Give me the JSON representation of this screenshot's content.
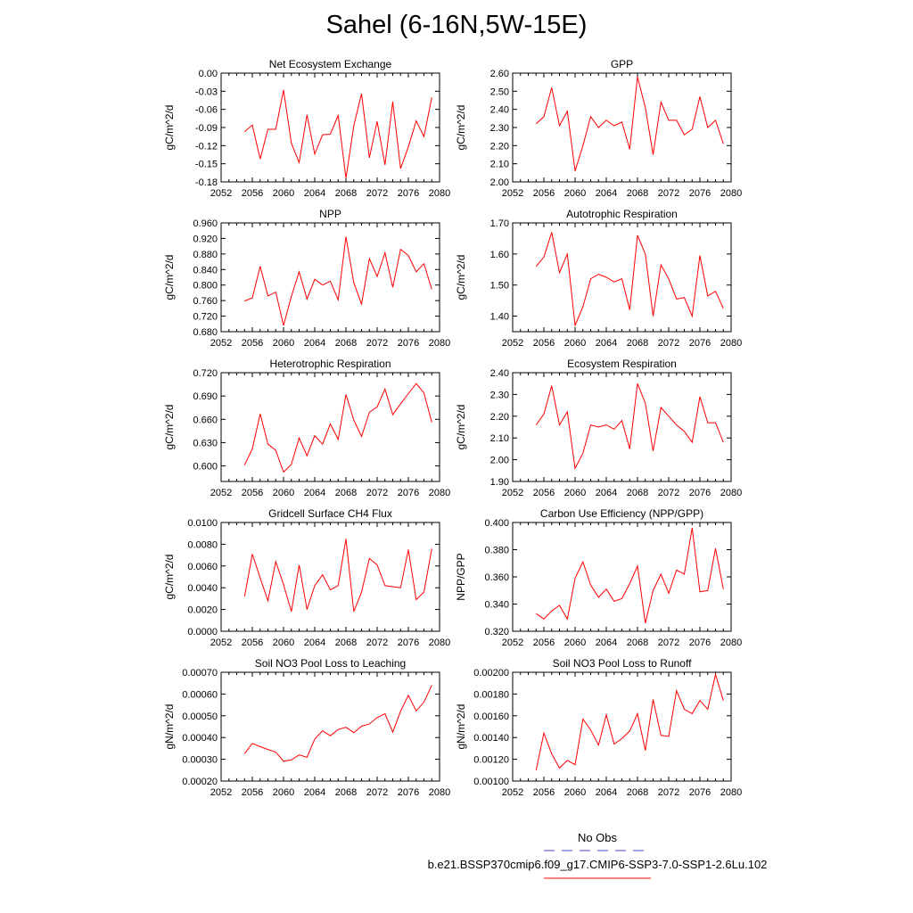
{
  "title": "Sahel (6-16N,5W-15E)",
  "legend": {
    "obs_label": "No Obs",
    "run_label": "b.e21.BSSP370cmip6.f09_g17.CMIP6-SSP3-7.0-SSP1-2.6Lu.102",
    "obs_color": "#4444cc",
    "run_color": "#ff0000"
  },
  "chart_data": [
    {
      "type": "line",
      "title": "Net Ecosystem Exchange",
      "xlabel": "",
      "ylabel": "gC/m^2/d",
      "xlim": [
        2052,
        2080
      ],
      "xticks": [
        2052,
        2056,
        2060,
        2064,
        2068,
        2072,
        2076,
        2080
      ],
      "ylim": [
        -0.18,
        0.0
      ],
      "yticklabels": [
        "-0.18",
        "-0.15",
        "-0.12",
        "-0.09",
        "-0.06",
        "-0.03",
        "0.00"
      ],
      "x": [
        2055,
        2056,
        2057,
        2058,
        2059,
        2060,
        2061,
        2062,
        2063,
        2064,
        2065,
        2066,
        2067,
        2068,
        2069,
        2070,
        2071,
        2072,
        2073,
        2074,
        2075,
        2076,
        2077,
        2078,
        2079
      ],
      "series": [
        {
          "values": [
            -0.097,
            -0.086,
            -0.142,
            -0.093,
            -0.093,
            -0.028,
            -0.116,
            -0.148,
            -0.069,
            -0.134,
            -0.102,
            -0.101,
            -0.07,
            -0.174,
            -0.087,
            -0.034,
            -0.14,
            -0.08,
            -0.152,
            -0.047,
            -0.158,
            -0.122,
            -0.079,
            -0.105,
            -0.04
          ]
        }
      ]
    },
    {
      "type": "line",
      "title": "GPP",
      "xlabel": "",
      "ylabel": "gC/m^2/d",
      "xlim": [
        2052,
        2080
      ],
      "xticks": [
        2052,
        2056,
        2060,
        2064,
        2068,
        2072,
        2076,
        2080
      ],
      "ylim": [
        2.0,
        2.6
      ],
      "yticklabels": [
        "2.00",
        "2.10",
        "2.20",
        "2.30",
        "2.40",
        "2.50",
        "2.60"
      ],
      "x": [
        2055,
        2056,
        2057,
        2058,
        2059,
        2060,
        2061,
        2062,
        2063,
        2064,
        2065,
        2066,
        2067,
        2068,
        2069,
        2070,
        2071,
        2072,
        2073,
        2074,
        2075,
        2076,
        2077,
        2078,
        2079
      ],
      "series": [
        {
          "values": [
            2.32,
            2.36,
            2.52,
            2.31,
            2.39,
            2.06,
            2.2,
            2.36,
            2.3,
            2.34,
            2.31,
            2.33,
            2.18,
            2.58,
            2.41,
            2.15,
            2.44,
            2.34,
            2.34,
            2.26,
            2.29,
            2.47,
            2.3,
            2.34,
            2.21
          ]
        }
      ]
    },
    {
      "type": "line",
      "title": "NPP",
      "xlabel": "",
      "ylabel": "gC/m^2/d",
      "xlim": [
        2052,
        2080
      ],
      "xticks": [
        2052,
        2056,
        2060,
        2064,
        2068,
        2072,
        2076,
        2080
      ],
      "ylim": [
        0.68,
        0.96
      ],
      "yticklabels": [
        "0.680",
        "0.720",
        "0.760",
        "0.800",
        "0.840",
        "0.880",
        "0.920",
        "0.960"
      ],
      "x": [
        2055,
        2056,
        2057,
        2058,
        2059,
        2060,
        2061,
        2062,
        2063,
        2064,
        2065,
        2066,
        2067,
        2068,
        2069,
        2070,
        2071,
        2072,
        2073,
        2074,
        2075,
        2076,
        2077,
        2078,
        2079
      ],
      "series": [
        {
          "values": [
            0.759,
            0.767,
            0.848,
            0.772,
            0.782,
            0.696,
            0.771,
            0.834,
            0.764,
            0.815,
            0.8,
            0.81,
            0.762,
            0.925,
            0.806,
            0.751,
            0.868,
            0.822,
            0.883,
            0.794,
            0.892,
            0.876,
            0.834,
            0.855,
            0.789
          ]
        }
      ]
    },
    {
      "type": "line",
      "title": "Autotrophic Respiration",
      "xlabel": "",
      "ylabel": "gC/m^2/d",
      "xlim": [
        2052,
        2080
      ],
      "xticks": [
        2052,
        2056,
        2060,
        2064,
        2068,
        2072,
        2076,
        2080
      ],
      "ylim": [
        1.35,
        1.7
      ],
      "yticklabels": [
        "1.40",
        "1.50",
        "1.60",
        "1.70"
      ],
      "yticks": [
        1.4,
        1.5,
        1.6,
        1.7
      ],
      "x": [
        2055,
        2056,
        2057,
        2058,
        2059,
        2060,
        2061,
        2062,
        2063,
        2064,
        2065,
        2066,
        2067,
        2068,
        2069,
        2070,
        2071,
        2072,
        2073,
        2074,
        2075,
        2076,
        2077,
        2078,
        2079
      ],
      "series": [
        {
          "values": [
            1.56,
            1.59,
            1.67,
            1.54,
            1.6,
            1.37,
            1.43,
            1.52,
            1.535,
            1.525,
            1.51,
            1.52,
            1.42,
            1.66,
            1.6,
            1.4,
            1.565,
            1.52,
            1.455,
            1.46,
            1.4,
            1.595,
            1.465,
            1.48,
            1.425
          ]
        }
      ]
    },
    {
      "type": "line",
      "title": "Heterotrophic Respiration",
      "xlabel": "",
      "ylabel": "gC/m^2/d",
      "xlim": [
        2052,
        2080
      ],
      "xticks": [
        2052,
        2056,
        2060,
        2064,
        2068,
        2072,
        2076,
        2080
      ],
      "ylim": [
        0.58,
        0.72
      ],
      "yticklabels": [
        "0.600",
        "0.630",
        "0.660",
        "0.690",
        "0.720"
      ],
      "yticks": [
        0.6,
        0.63,
        0.66,
        0.69,
        0.72
      ],
      "x": [
        2055,
        2056,
        2057,
        2058,
        2059,
        2060,
        2061,
        2062,
        2063,
        2064,
        2065,
        2066,
        2067,
        2068,
        2069,
        2070,
        2071,
        2072,
        2073,
        2074,
        2075,
        2076,
        2077,
        2078,
        2079
      ],
      "series": [
        {
          "values": [
            0.601,
            0.622,
            0.667,
            0.628,
            0.62,
            0.592,
            0.602,
            0.636,
            0.613,
            0.639,
            0.628,
            0.654,
            0.634,
            0.692,
            0.659,
            0.638,
            0.669,
            0.676,
            0.699,
            0.666,
            0.68,
            0.693,
            0.706,
            0.694,
            0.656
          ]
        }
      ]
    },
    {
      "type": "line",
      "title": "Ecosystem Respiration",
      "xlabel": "",
      "ylabel": "gC/m^2/d",
      "xlim": [
        2052,
        2080
      ],
      "xticks": [
        2052,
        2056,
        2060,
        2064,
        2068,
        2072,
        2076,
        2080
      ],
      "ylim": [
        1.9,
        2.4
      ],
      "yticklabels": [
        "1.90",
        "2.00",
        "2.10",
        "2.20",
        "2.30",
        "2.40"
      ],
      "x": [
        2055,
        2056,
        2057,
        2058,
        2059,
        2060,
        2061,
        2062,
        2063,
        2064,
        2065,
        2066,
        2067,
        2068,
        2069,
        2070,
        2071,
        2072,
        2073,
        2074,
        2075,
        2076,
        2077,
        2078,
        2079
      ],
      "series": [
        {
          "values": [
            2.16,
            2.21,
            2.34,
            2.16,
            2.22,
            1.96,
            2.03,
            2.16,
            2.15,
            2.16,
            2.14,
            2.18,
            2.05,
            2.35,
            2.26,
            2.04,
            2.24,
            2.2,
            2.16,
            2.13,
            2.08,
            2.29,
            2.17,
            2.17,
            2.08
          ]
        }
      ]
    },
    {
      "type": "line",
      "title": "Gridcell Surface CH4 Flux",
      "xlabel": "",
      "ylabel": "gC/m^2/d",
      "xlim": [
        2052,
        2080
      ],
      "xticks": [
        2052,
        2056,
        2060,
        2064,
        2068,
        2072,
        2076,
        2080
      ],
      "ylim": [
        0.0,
        0.01
      ],
      "yticklabels": [
        "0.0000",
        "0.0020",
        "0.0040",
        "0.0060",
        "0.0080",
        "0.0100"
      ],
      "x": [
        2055,
        2056,
        2057,
        2058,
        2059,
        2060,
        2061,
        2062,
        2063,
        2064,
        2065,
        2066,
        2067,
        2068,
        2069,
        2070,
        2071,
        2072,
        2073,
        2074,
        2075,
        2076,
        2077,
        2078,
        2079
      ],
      "series": [
        {
          "values": [
            0.0032,
            0.0071,
            0.0049,
            0.0028,
            0.0064,
            0.0043,
            0.0018,
            0.0061,
            0.002,
            0.0042,
            0.0052,
            0.0038,
            0.0042,
            0.0085,
            0.0018,
            0.0036,
            0.0067,
            0.0061,
            0.0042,
            0.0041,
            0.004,
            0.0075,
            0.0029,
            0.0036,
            0.0076
          ]
        }
      ]
    },
    {
      "type": "line",
      "title": "Carbon Use Efficiency (NPP/GPP)",
      "xlabel": "",
      "ylabel": "NPP/GPP",
      "xlim": [
        2052,
        2080
      ],
      "xticks": [
        2052,
        2056,
        2060,
        2064,
        2068,
        2072,
        2076,
        2080
      ],
      "ylim": [
        0.32,
        0.4
      ],
      "yticklabels": [
        "0.320",
        "0.340",
        "0.360",
        "0.380",
        "0.400"
      ],
      "yticks": [
        0.32,
        0.34,
        0.36,
        0.38,
        0.4
      ],
      "x": [
        2055,
        2056,
        2057,
        2058,
        2059,
        2060,
        2061,
        2062,
        2063,
        2064,
        2065,
        2066,
        2067,
        2068,
        2069,
        2070,
        2071,
        2072,
        2073,
        2074,
        2075,
        2076,
        2077,
        2078,
        2079
      ],
      "series": [
        {
          "values": [
            0.333,
            0.329,
            0.335,
            0.339,
            0.329,
            0.359,
            0.371,
            0.354,
            0.345,
            0.351,
            0.342,
            0.344,
            0.355,
            0.368,
            0.326,
            0.35,
            0.362,
            0.348,
            0.365,
            0.362,
            0.396,
            0.349,
            0.35,
            0.381,
            0.351
          ]
        }
      ]
    },
    {
      "type": "line",
      "title": "Soil NO3 Pool Loss to Leaching",
      "xlabel": "",
      "ylabel": "gN/m^2/d",
      "xlim": [
        2052,
        2080
      ],
      "xticks": [
        2052,
        2056,
        2060,
        2064,
        2068,
        2072,
        2076,
        2080
      ],
      "ylim": [
        0.0002,
        0.0007
      ],
      "yticklabels": [
        "0.00020",
        "0.00030",
        "0.00040",
        "0.00050",
        "0.00060",
        "0.00070"
      ],
      "x": [
        2055,
        2056,
        2057,
        2058,
        2059,
        2060,
        2061,
        2062,
        2063,
        2064,
        2065,
        2066,
        2067,
        2068,
        2069,
        2070,
        2071,
        2072,
        2073,
        2074,
        2075,
        2076,
        2077,
        2078,
        2079
      ],
      "series": [
        {
          "values": [
            0.000326,
            0.000373,
            0.000358,
            0.000345,
            0.000333,
            0.000291,
            0.000297,
            0.00032,
            0.000309,
            0.000393,
            0.000431,
            0.000408,
            0.000437,
            0.000447,
            0.000422,
            0.000452,
            0.000462,
            0.000492,
            0.000509,
            0.000425,
            0.000521,
            0.000594,
            0.000522,
            0.000563,
            0.00064
          ]
        }
      ]
    },
    {
      "type": "line",
      "title": "Soil NO3 Pool Loss to Runoff",
      "xlabel": "",
      "ylabel": "gN/m^2/d",
      "xlim": [
        2052,
        2080
      ],
      "xticks": [
        2052,
        2056,
        2060,
        2064,
        2068,
        2072,
        2076,
        2080
      ],
      "ylim": [
        0.001,
        0.002
      ],
      "yticklabels": [
        "0.00100",
        "0.00120",
        "0.00140",
        "0.00160",
        "0.00180",
        "0.00200"
      ],
      "x": [
        2055,
        2056,
        2057,
        2058,
        2059,
        2060,
        2061,
        2062,
        2063,
        2064,
        2065,
        2066,
        2067,
        2068,
        2069,
        2070,
        2071,
        2072,
        2073,
        2074,
        2075,
        2076,
        2077,
        2078,
        2079
      ],
      "series": [
        {
          "values": [
            0.0011,
            0.00144,
            0.00125,
            0.00112,
            0.00119,
            0.00115,
            0.00157,
            0.00147,
            0.00133,
            0.00161,
            0.00134,
            0.00139,
            0.00146,
            0.00162,
            0.00128,
            0.00175,
            0.00142,
            0.00141,
            0.00183,
            0.00166,
            0.00162,
            0.00174,
            0.00166,
            0.00198,
            0.00174
          ]
        }
      ]
    }
  ]
}
